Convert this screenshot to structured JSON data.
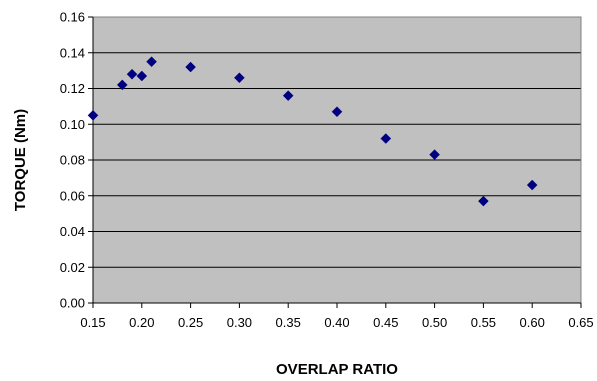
{
  "chart_data": {
    "type": "scatter",
    "title": "",
    "xlabel": "OVERLAP RATIO",
    "ylabel": "TORQUE (Nm)",
    "xlim": [
      0.15,
      0.65
    ],
    "ylim": [
      0.0,
      0.16
    ],
    "xticks": [
      "0.15",
      "0.20",
      "0.25",
      "0.30",
      "0.35",
      "0.40",
      "0.45",
      "0.50",
      "0.55",
      "0.60",
      "0.65"
    ],
    "yticks": [
      "0.00",
      "0.02",
      "0.04",
      "0.06",
      "0.08",
      "0.10",
      "0.12",
      "0.14",
      "0.16"
    ],
    "grid": "horizontal",
    "legend": "none",
    "plot_background": "#c0c0c0",
    "marker_color": "#000080",
    "marker_shape": "diamond",
    "series": [
      {
        "x": [
          0.15,
          0.18,
          0.19,
          0.2,
          0.21,
          0.25,
          0.3,
          0.35,
          0.4,
          0.45,
          0.5,
          0.55,
          0.6
        ],
        "y": [
          0.105,
          0.122,
          0.128,
          0.127,
          0.135,
          0.132,
          0.126,
          0.116,
          0.107,
          0.092,
          0.083,
          0.057,
          0.066
        ]
      }
    ]
  }
}
